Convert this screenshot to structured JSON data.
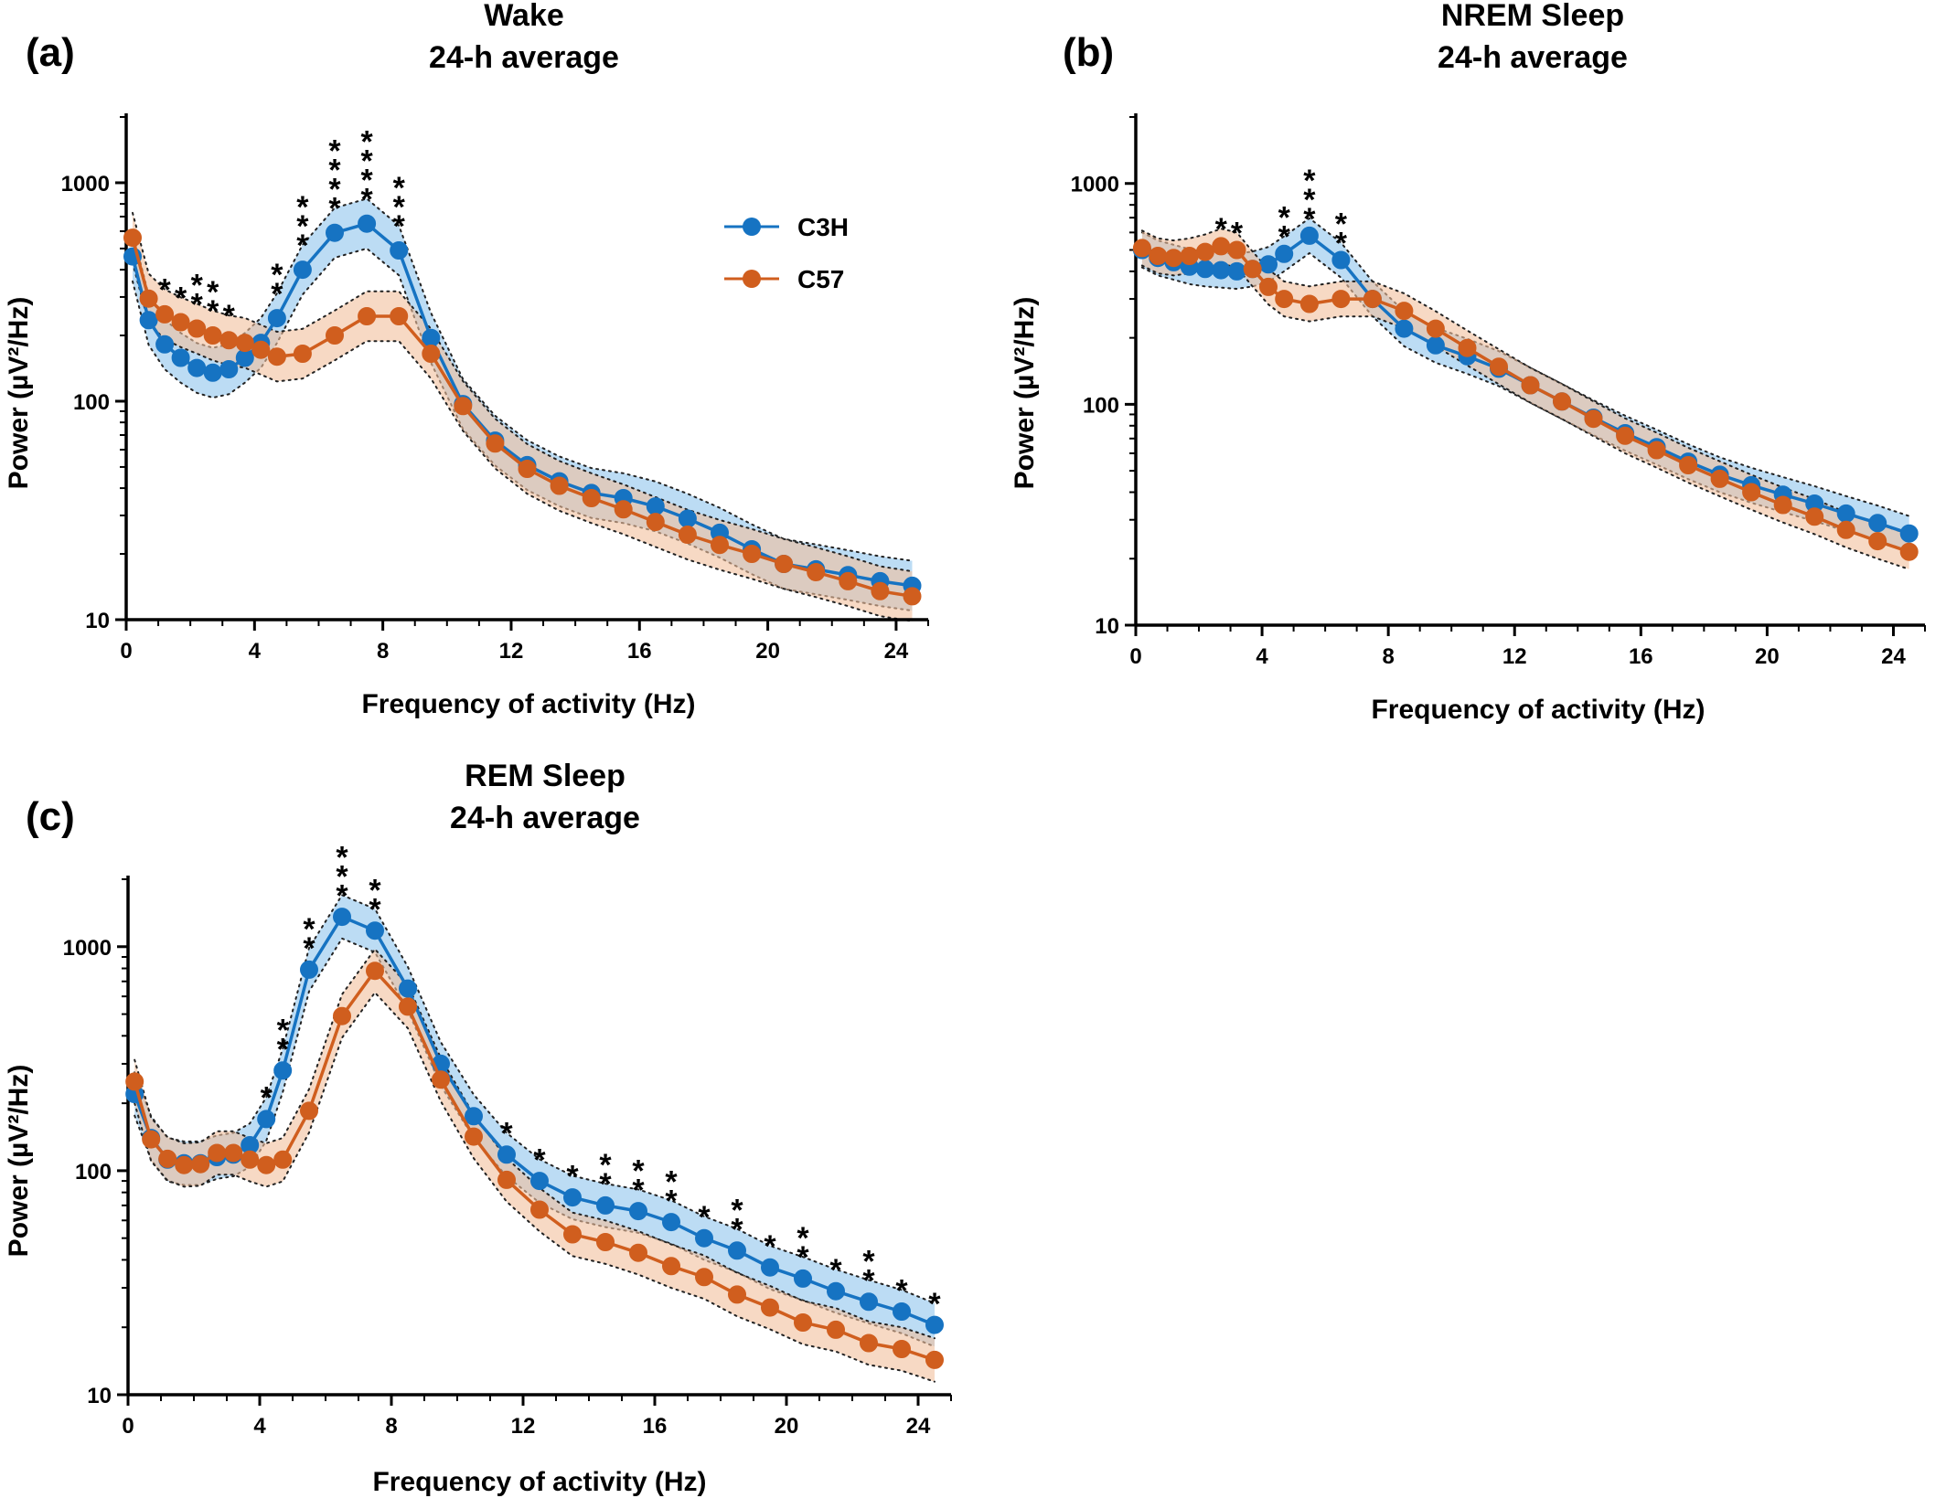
{
  "colors": {
    "C3H": "#1673c2",
    "C57": "#d05e1e",
    "C3H_band": "#8fc4ec",
    "C57_band": "#f2bf9c"
  },
  "legend": {
    "items": [
      {
        "name": "C3H",
        "color": "#1673c2"
      },
      {
        "name": "C57",
        "color": "#d05e1e"
      }
    ],
    "placement": "top-right of panel (a)"
  },
  "chart_data": [
    {
      "panel": "(a)",
      "type": "line",
      "title": "Wake",
      "subtitle": "24-h average",
      "xlabel": "Frequency of activity (Hz)",
      "ylabel": "Power (µV²/Hz)",
      "xlim": [
        0,
        25
      ],
      "ylim": [
        10,
        2000
      ],
      "yscale": "log",
      "xticks": [
        0,
        4,
        8,
        12,
        16,
        20,
        24
      ],
      "yticks": [
        10,
        100,
        1000
      ],
      "grid": false,
      "x": [
        0.2,
        0.7,
        1.2,
        1.7,
        2.2,
        2.7,
        3.2,
        3.7,
        4.2,
        4.7,
        5.5,
        6.5,
        7.5,
        8.5,
        9.5,
        10.5,
        11.5,
        12.5,
        13.5,
        14.5,
        15.5,
        16.5,
        17.5,
        18.5,
        19.5,
        20.5,
        21.5,
        22.5,
        23.5,
        24.5
      ],
      "series": [
        {
          "name": "C3H",
          "values": [
            460,
            235,
            182,
            158,
            142,
            135,
            140,
            158,
            185,
            240,
            400,
            590,
            650,
            490,
            195,
            97,
            66,
            51,
            43,
            38,
            36,
            33,
            29,
            25,
            21,
            18,
            17,
            16,
            15,
            14.3
          ]
        },
        {
          "name": "C57",
          "values": [
            560,
            295,
            250,
            230,
            215,
            200,
            190,
            185,
            172,
            160,
            165,
            200,
            245,
            245,
            165,
            95,
            64,
            49,
            41,
            36,
            32,
            28,
            24.5,
            22,
            20,
            18,
            16.5,
            15,
            13.5,
            12.8
          ]
        }
      ],
      "band_ratio": 1.3,
      "significance": [
        {
          "x": 1.2,
          "stars": 1
        },
        {
          "x": 1.7,
          "stars": 1
        },
        {
          "x": 2.2,
          "stars": 2
        },
        {
          "x": 2.7,
          "stars": 2
        },
        {
          "x": 3.2,
          "stars": 1
        },
        {
          "x": 4.7,
          "stars": 2
        },
        {
          "x": 5.5,
          "stars": 3
        },
        {
          "x": 6.5,
          "stars": 4
        },
        {
          "x": 7.5,
          "stars": 4
        },
        {
          "x": 8.5,
          "stars": 3
        }
      ]
    },
    {
      "panel": "(b)",
      "type": "line",
      "title": "NREM Sleep",
      "subtitle": "24-h average",
      "xlabel": "Frequency of activity (Hz)",
      "ylabel": "Power (µV²/Hz)",
      "xlim": [
        0,
        25
      ],
      "ylim": [
        10,
        2000
      ],
      "yscale": "log",
      "xticks": [
        0,
        4,
        8,
        12,
        16,
        20,
        24
      ],
      "yticks": [
        10,
        100,
        1000
      ],
      "grid": false,
      "x": [
        0.2,
        0.7,
        1.2,
        1.7,
        2.2,
        2.7,
        3.2,
        3.7,
        4.2,
        4.7,
        5.5,
        6.5,
        7.5,
        8.5,
        9.5,
        10.5,
        11.5,
        12.5,
        13.5,
        14.5,
        15.5,
        16.5,
        17.5,
        18.5,
        19.5,
        20.5,
        21.5,
        22.5,
        23.5,
        24.5
      ],
      "series": [
        {
          "name": "C3H",
          "values": [
            500,
            460,
            440,
            420,
            410,
            405,
            400,
            410,
            430,
            480,
            580,
            450,
            300,
            220,
            185,
            165,
            145,
            122,
            103,
            87,
            74,
            64,
            55,
            48,
            43,
            39,
            35.5,
            32,
            29,
            26
          ]
        },
        {
          "name": "C57",
          "values": [
            510,
            470,
            460,
            470,
            490,
            520,
            500,
            410,
            340,
            300,
            285,
            300,
            300,
            265,
            220,
            180,
            148,
            122,
            103,
            86,
            72,
            62,
            53,
            46,
            40,
            35,
            31,
            27,
            24,
            21.5
          ]
        }
      ],
      "band_ratio": 1.2,
      "significance": [
        {
          "x": 2.7,
          "stars": 1
        },
        {
          "x": 3.2,
          "stars": 1
        },
        {
          "x": 4.7,
          "stars": 2
        },
        {
          "x": 5.5,
          "stars": 3
        },
        {
          "x": 6.5,
          "stars": 2
        }
      ]
    },
    {
      "panel": "(c)",
      "type": "line",
      "title": "REM Sleep",
      "subtitle": "24-h average",
      "xlabel": "Frequency of activity (Hz)",
      "ylabel": "Power (µV²/Hz)",
      "xlim": [
        0,
        25
      ],
      "ylim": [
        10,
        2000
      ],
      "yscale": "log",
      "xticks": [
        0,
        4,
        8,
        12,
        16,
        20,
        24
      ],
      "yticks": [
        10,
        100,
        1000
      ],
      "grid": false,
      "x": [
        0.2,
        0.7,
        1.2,
        1.7,
        2.2,
        2.7,
        3.2,
        3.7,
        4.2,
        4.7,
        5.5,
        6.5,
        7.5,
        8.5,
        9.5,
        10.5,
        11.5,
        12.5,
        13.5,
        14.5,
        15.5,
        16.5,
        17.5,
        18.5,
        19.5,
        20.5,
        21.5,
        22.5,
        23.5,
        24.5
      ],
      "series": [
        {
          "name": "C3H",
          "values": [
            220,
            140,
            112,
            108,
            108,
            115,
            118,
            130,
            170,
            280,
            790,
            1360,
            1180,
            650,
            300,
            175,
            118,
            90,
            76,
            70,
            66,
            59,
            50,
            44,
            37,
            33,
            29,
            26,
            23.5,
            20.5
          ]
        },
        {
          "name": "C57",
          "values": [
            250,
            138,
            113,
            106,
            107,
            120,
            120,
            112,
            106,
            112,
            185,
            490,
            780,
            540,
            255,
            142,
            91,
            67,
            52,
            48,
            43,
            37.5,
            33.5,
            28,
            24.5,
            21,
            19.5,
            17,
            16,
            14.3
          ]
        }
      ],
      "band_ratio": 1.25,
      "significance": [
        {
          "x": 4.2,
          "stars": 1
        },
        {
          "x": 4.7,
          "stars": 2
        },
        {
          "x": 5.5,
          "stars": 2
        },
        {
          "x": 6.5,
          "stars": 3
        },
        {
          "x": 7.5,
          "stars": 2
        },
        {
          "x": 11.5,
          "stars": 1
        },
        {
          "x": 12.5,
          "stars": 1
        },
        {
          "x": 13.5,
          "stars": 1
        },
        {
          "x": 14.5,
          "stars": 2
        },
        {
          "x": 15.5,
          "stars": 2
        },
        {
          "x": 16.5,
          "stars": 2
        },
        {
          "x": 17.5,
          "stars": 1
        },
        {
          "x": 18.5,
          "stars": 2
        },
        {
          "x": 19.5,
          "stars": 1
        },
        {
          "x": 20.5,
          "stars": 2
        },
        {
          "x": 21.5,
          "stars": 1
        },
        {
          "x": 22.5,
          "stars": 2
        },
        {
          "x": 23.5,
          "stars": 1
        },
        {
          "x": 24.5,
          "stars": 1
        }
      ]
    }
  ]
}
